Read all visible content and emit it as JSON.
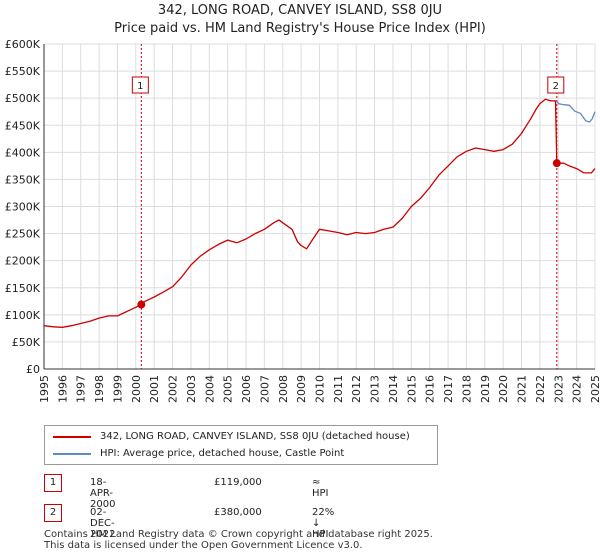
{
  "title_line1": "342, LONG ROAD, CANVEY ISLAND, SS8 0JU",
  "title_line2": "Price paid vs. HM Land Registry's House Price Index (HPI)",
  "colors": {
    "property": "#cc0000",
    "hpi": "#5b8cc8",
    "grid": "#dddddd",
    "marker_line": "#cc0000"
  },
  "chart_data": {
    "type": "line",
    "title": "342, LONG ROAD, CANVEY ISLAND, SS8 0JU — Price paid vs. HM Land Registry's House Price Index (HPI)",
    "xlabel": "",
    "ylabel": "",
    "xlim": [
      1995,
      2025
    ],
    "ylim": [
      0,
      600000
    ],
    "x_ticks": [
      "1995",
      "1996",
      "1997",
      "1998",
      "1999",
      "2000",
      "2001",
      "2002",
      "2003",
      "2004",
      "2005",
      "2006",
      "2007",
      "2008",
      "2009",
      "2010",
      "2011",
      "2012",
      "2013",
      "2014",
      "2015",
      "2016",
      "2017",
      "2018",
      "2019",
      "2020",
      "2021",
      "2022",
      "2023",
      "2024",
      "2025"
    ],
    "y_ticks": [
      {
        "value": 0,
        "label": "£0"
      },
      {
        "value": 50000,
        "label": "£50K"
      },
      {
        "value": 100000,
        "label": "£100K"
      },
      {
        "value": 150000,
        "label": "£150K"
      },
      {
        "value": 200000,
        "label": "£200K"
      },
      {
        "value": 250000,
        "label": "£250K"
      },
      {
        "value": 300000,
        "label": "£300K"
      },
      {
        "value": 350000,
        "label": "£350K"
      },
      {
        "value": 400000,
        "label": "£400K"
      },
      {
        "value": 450000,
        "label": "£450K"
      },
      {
        "value": 500000,
        "label": "£500K"
      },
      {
        "value": 550000,
        "label": "£550K"
      },
      {
        "value": 600000,
        "label": "£600K"
      }
    ],
    "grid": true,
    "series": [
      {
        "name": "342, LONG ROAD, CANVEY ISLAND, SS8 0JU (detached house)",
        "color": "#cc0000",
        "x": [
          1995.0,
          1995.5,
          1996.0,
          1996.5,
          1997.0,
          1997.5,
          1998.0,
          1998.5,
          1999.0,
          1999.5,
          2000.0,
          2000.3,
          2000.5,
          2001.0,
          2001.5,
          2002.0,
          2002.5,
          2003.0,
          2003.5,
          2004.0,
          2004.5,
          2005.0,
          2005.5,
          2006.0,
          2006.5,
          2007.0,
          2007.5,
          2007.8,
          2008.0,
          2008.5,
          2008.8,
          2009.0,
          2009.3,
          2009.6,
          2010.0,
          2010.5,
          2011.0,
          2011.5,
          2012.0,
          2012.5,
          2013.0,
          2013.5,
          2014.0,
          2014.5,
          2015.0,
          2015.5,
          2016.0,
          2016.5,
          2017.0,
          2017.5,
          2018.0,
          2018.5,
          2019.0,
          2019.5,
          2020.0,
          2020.5,
          2021.0,
          2021.5,
          2021.8,
          2022.0,
          2022.3,
          2022.6,
          2022.85,
          2022.92,
          2023.0,
          2023.3,
          2023.6,
          2024.0,
          2024.4,
          2024.8,
          2025.0
        ],
        "y": [
          80000,
          78000,
          77000,
          80000,
          84000,
          88000,
          94000,
          98000,
          98000,
          106000,
          114000,
          119000,
          125000,
          133000,
          142000,
          152000,
          170000,
          192000,
          208000,
          220000,
          230000,
          238000,
          233000,
          240000,
          250000,
          258000,
          270000,
          275000,
          270000,
          258000,
          235000,
          228000,
          222000,
          238000,
          258000,
          255000,
          252000,
          248000,
          252000,
          250000,
          252000,
          258000,
          262000,
          278000,
          300000,
          315000,
          335000,
          358000,
          375000,
          392000,
          402000,
          408000,
          405000,
          402000,
          405000,
          415000,
          435000,
          462000,
          480000,
          490000,
          498000,
          495000,
          495000,
          380000,
          380000,
          380000,
          375000,
          370000,
          362000,
          362000,
          370000
        ]
      },
      {
        "name": "HPI: Average price, detached house, Castle Point",
        "color": "#5b8cc8",
        "x": [
          2022.92,
          2023.0,
          2023.3,
          2023.6,
          2023.9,
          2024.2,
          2024.5,
          2024.7,
          2024.85,
          2025.0
        ],
        "y": [
          495000,
          490000,
          488000,
          487000,
          476000,
          472000,
          458000,
          456000,
          462000,
          475000
        ]
      }
    ],
    "markers": [
      {
        "label": "1",
        "x": 2000.3,
        "y": 119000
      },
      {
        "label": "2",
        "x": 2022.92,
        "y": 380000
      }
    ],
    "legend_position": "bottom-left"
  },
  "legend": {
    "property_label": "342, LONG ROAD, CANVEY ISLAND, SS8 0JU (detached house)",
    "hpi_label": "HPI: Average price, detached house, Castle Point"
  },
  "annotations": [
    {
      "num": "1",
      "date": "18-APR-2000",
      "price": "£119,000",
      "hpi": "≈ HPI"
    },
    {
      "num": "2",
      "date": "02-DEC-2022",
      "price": "£380,000",
      "hpi": "22% ↓ HPI"
    }
  ],
  "footer": {
    "line1": "Contains HM Land Registry data © Crown copyright and database right 2025.",
    "line2": "This data is licensed under the Open Government Licence v3.0."
  }
}
